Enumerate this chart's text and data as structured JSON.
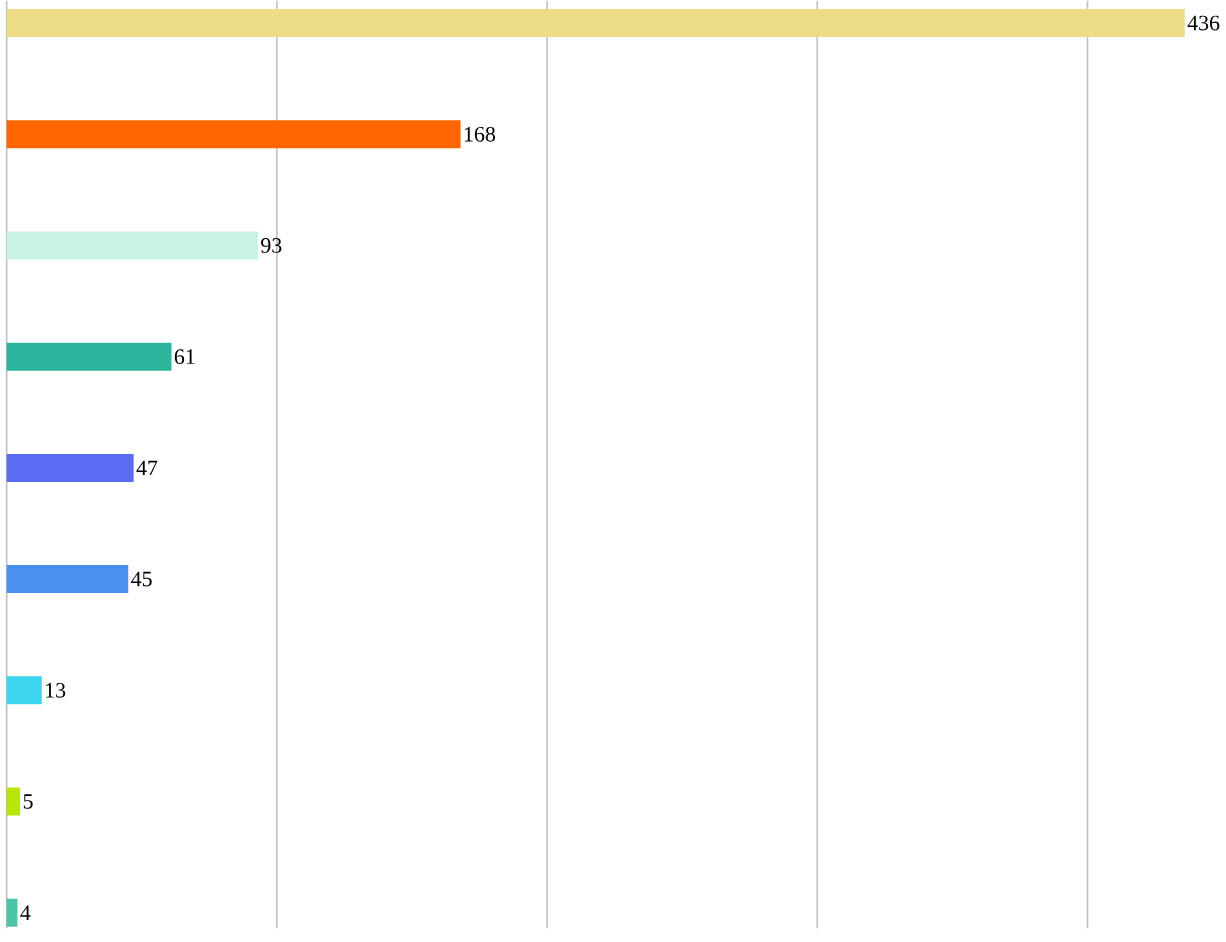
{
  "chart_data": {
    "type": "bar",
    "orientation": "horizontal",
    "categories": [
      null,
      null,
      null,
      null,
      null,
      null,
      null,
      null,
      null
    ],
    "values": [
      436,
      168,
      93,
      61,
      47,
      45,
      13,
      5,
      4
    ],
    "colors": [
      "#eddc88",
      "#ff6600",
      "#c8f2e6",
      "#2bb39c",
      "#5a6cf2",
      "#4a90ee",
      "#3dd6f0",
      "#b8e60a",
      "#4cc4a8"
    ],
    "xticks": [
      {
        "value": 0,
        "label": null
      },
      {
        "value": 100,
        "label": null
      },
      {
        "value": 200,
        "label": null
      },
      {
        "value": 300,
        "label": null
      },
      {
        "value": 400,
        "label": null
      }
    ],
    "grid": "x",
    "data_labels": true
  }
}
